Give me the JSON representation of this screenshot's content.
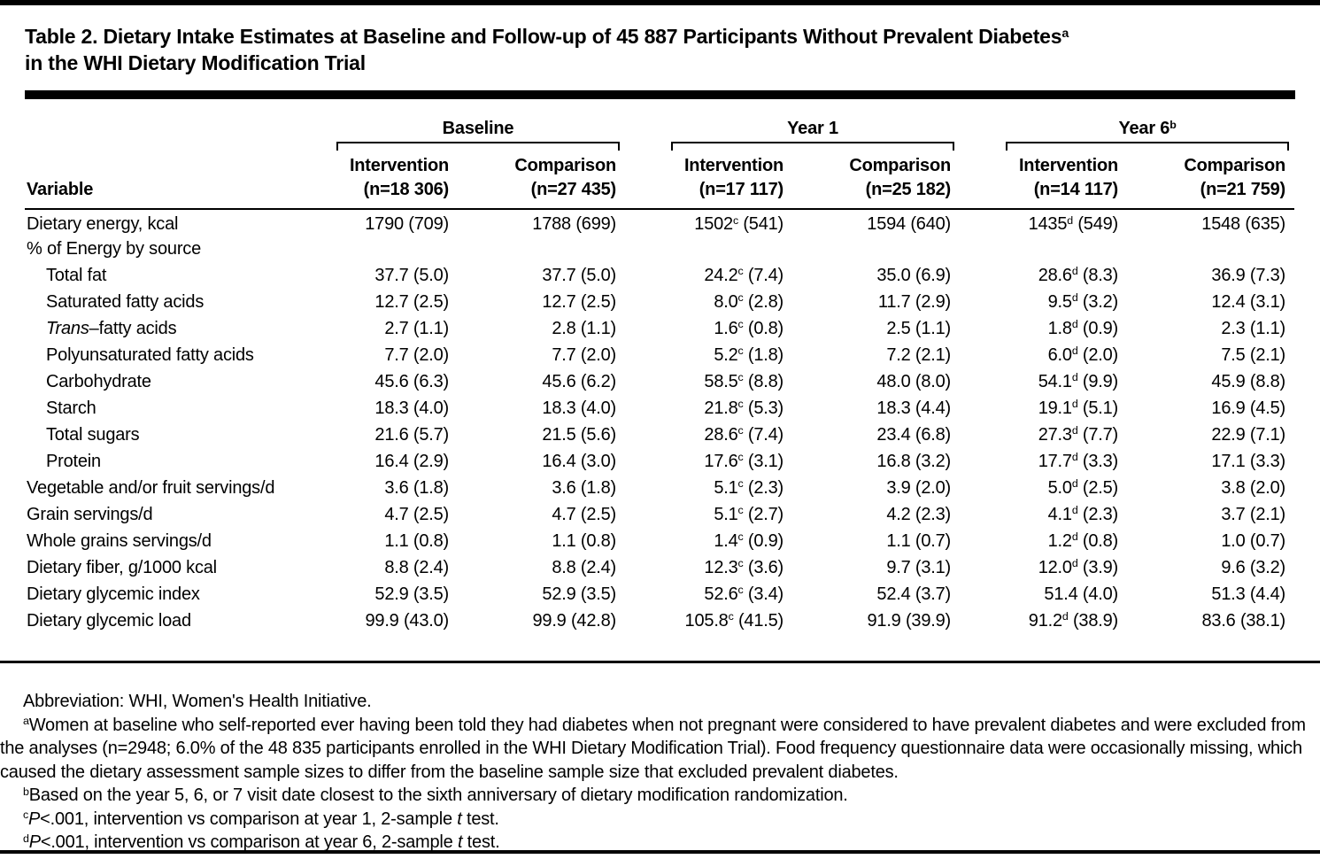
{
  "title": {
    "line1": "Table 2. Dietary Intake Estimates at Baseline and Follow-up of 45 887 Participants Without Prevalent Diabetes^a",
    "line2": "in the WHI Dietary Modification Trial"
  },
  "table": {
    "variable_header": "Variable",
    "groups": [
      {
        "label": "Baseline",
        "columns": [
          {
            "label": "Intervention",
            "n": "(n=18 306)"
          },
          {
            "label": "Comparison",
            "n": "(n=27 435)"
          }
        ]
      },
      {
        "label": "Year 1",
        "columns": [
          {
            "label": "Intervention",
            "n": "(n=17 117)"
          },
          {
            "label": "Comparison",
            "n": "(n=25 182)"
          }
        ]
      },
      {
        "label": "Year 6^b",
        "columns": [
          {
            "label": "Intervention",
            "n": "(n=14 117)"
          },
          {
            "label": "Comparison",
            "n": "(n=21 759)"
          }
        ]
      }
    ],
    "rows": [
      {
        "label": "Dietary energy, kcal",
        "level": 0,
        "values": [
          "1790 (709)",
          "1788 (699)",
          "1502^c (541)",
          "1594 (640)",
          "1435^d (549)",
          "1548 (635)"
        ]
      },
      {
        "label": "% of Energy by source",
        "level": 0,
        "values": [
          "",
          "",
          "",
          "",
          "",
          ""
        ]
      },
      {
        "label": "Total fat",
        "level": 1,
        "values": [
          "37.7 (5.0)",
          "37.7 (5.0)",
          "24.2^c (7.4)",
          "35.0 (6.9)",
          "28.6^d (8.3)",
          "36.9 (7.3)"
        ]
      },
      {
        "label": "Saturated fatty acids",
        "level": 1,
        "values": [
          "12.7 (2.5)",
          "12.7 (2.5)",
          "8.0^c (2.8)",
          "11.7 (2.9)",
          "9.5^d (3.2)",
          "12.4 (3.1)"
        ]
      },
      {
        "label": "*Trans*–fatty acids",
        "level": 1,
        "values": [
          "2.7 (1.1)",
          "2.8 (1.1)",
          "1.6^c (0.8)",
          "2.5 (1.1)",
          "1.8^d (0.9)",
          "2.3 (1.1)"
        ]
      },
      {
        "label": "Polyunsaturated fatty acids",
        "level": 1,
        "values": [
          "7.7 (2.0)",
          "7.7 (2.0)",
          "5.2^c (1.8)",
          "7.2 (2.1)",
          "6.0^d (2.0)",
          "7.5 (2.1)"
        ]
      },
      {
        "label": "Carbohydrate",
        "level": 1,
        "values": [
          "45.6 (6.3)",
          "45.6 (6.2)",
          "58.5^c (8.8)",
          "48.0 (8.0)",
          "54.1^d (9.9)",
          "45.9 (8.8)"
        ]
      },
      {
        "label": "Starch",
        "level": 1,
        "values": [
          "18.3 (4.0)",
          "18.3 (4.0)",
          "21.8^c (5.3)",
          "18.3 (4.4)",
          "19.1^d (5.1)",
          "16.9 (4.5)"
        ]
      },
      {
        "label": "Total sugars",
        "level": 1,
        "values": [
          "21.6 (5.7)",
          "21.5 (5.6)",
          "28.6^c (7.4)",
          "23.4 (6.8)",
          "27.3^d (7.7)",
          "22.9 (7.1)"
        ]
      },
      {
        "label": "Protein",
        "level": 1,
        "values": [
          "16.4 (2.9)",
          "16.4 (3.0)",
          "17.6^c (3.1)",
          "16.8 (3.2)",
          "17.7^d (3.3)",
          "17.1 (3.3)"
        ]
      },
      {
        "label": "Vegetable and/or fruit servings/d",
        "level": 0,
        "values": [
          "3.6 (1.8)",
          "3.6 (1.8)",
          "5.1^c (2.3)",
          "3.9 (2.0)",
          "5.0^d (2.5)",
          "3.8 (2.0)"
        ]
      },
      {
        "label": "Grain servings/d",
        "level": 0,
        "values": [
          "4.7 (2.5)",
          "4.7 (2.5)",
          "5.1^c (2.7)",
          "4.2 (2.3)",
          "4.1^d (2.3)",
          "3.7 (2.1)"
        ]
      },
      {
        "label": "Whole grains servings/d",
        "level": 0,
        "values": [
          "1.1 (0.8)",
          "1.1 (0.8)",
          "1.4^c (0.9)",
          "1.1 (0.7)",
          "1.2^d (0.8)",
          "1.0 (0.7)"
        ]
      },
      {
        "label": "Dietary fiber, g/1000 kcal",
        "level": 0,
        "values": [
          "8.8 (2.4)",
          "8.8 (2.4)",
          "12.3^c (3.6)",
          "9.7 (3.1)",
          "12.0^d (3.9)",
          "9.6 (3.2)"
        ]
      },
      {
        "label": "Dietary glycemic index",
        "level": 0,
        "values": [
          "52.9 (3.5)",
          "52.9 (3.5)",
          "52.6^c (3.4)",
          "52.4 (3.7)",
          "51.4 (4.0)",
          "51.3 (4.4)"
        ]
      },
      {
        "label": "Dietary glycemic load",
        "level": 0,
        "values": [
          "99.9 (43.0)",
          "99.9 (42.8)",
          "105.8^c (41.5)",
          "91.9 (39.9)",
          "91.2^d (38.9)",
          "83.6 (38.1)"
        ]
      }
    ]
  },
  "footnotes": [
    "Abbreviation: WHI, Women's Health Initiative.",
    "^aWomen at baseline who self-reported ever having been told they had diabetes when not pregnant were considered to have prevalent diabetes and were excluded from the analyses (n=2948; 6.0% of the 48 835 participants enrolled in the WHI Dietary Modification Trial). Food frequency questionnaire data were occasionally missing, which caused the dietary assessment sample sizes to differ from the baseline sample size that excluded prevalent diabetes.",
    "^bBased on the year 5, 6, or 7 visit date closest to the sixth anniversary of dietary modification randomization.",
    "^c*P*<.001, intervention vs comparison at year 1, 2-sample *t* test.",
    "^d*P*<.001, intervention vs comparison at year 6, 2-sample *t* test."
  ],
  "colors": {
    "text": "#000000",
    "background": "#ffffff",
    "rule": "#000000"
  }
}
